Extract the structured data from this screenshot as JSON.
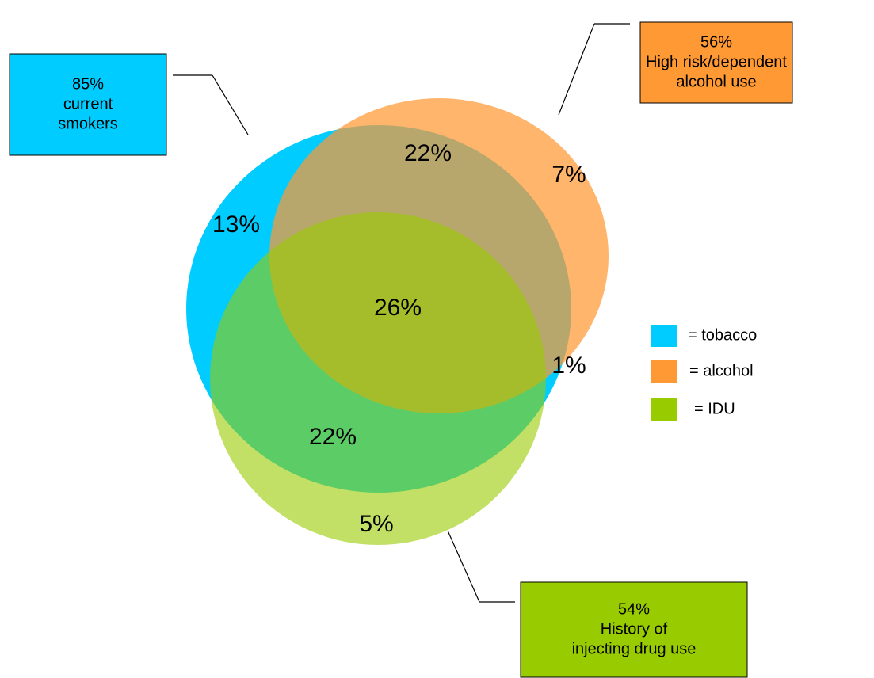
{
  "sets": [
    {
      "name": "tobacco",
      "color": "#00ccff",
      "callout": [
        "85%",
        "current",
        "smokers"
      ]
    },
    {
      "name": "alcohol",
      "color": "#ff9933",
      "callout": [
        "56%",
        "High risk/dependent",
        "alcohol use"
      ]
    },
    {
      "name": "IDU",
      "color": "#99cc00",
      "callout": [
        "54%",
        "History of",
        "injecting drug use"
      ]
    }
  ],
  "regions": [
    {
      "sets": "tobacco only",
      "label": "13%"
    },
    {
      "sets": "tobacco + alcohol",
      "label": "22%"
    },
    {
      "sets": "alcohol only",
      "label": "7%"
    },
    {
      "sets": "all three",
      "label": "26%"
    },
    {
      "sets": "alcohol + IDU",
      "label": "1%"
    },
    {
      "sets": "tobacco + IDU",
      "label": "22%"
    },
    {
      "sets": "IDU only",
      "label": "5%"
    }
  ],
  "legend": [
    "= tobacco",
    "= alcohol",
    "= IDU"
  ]
}
